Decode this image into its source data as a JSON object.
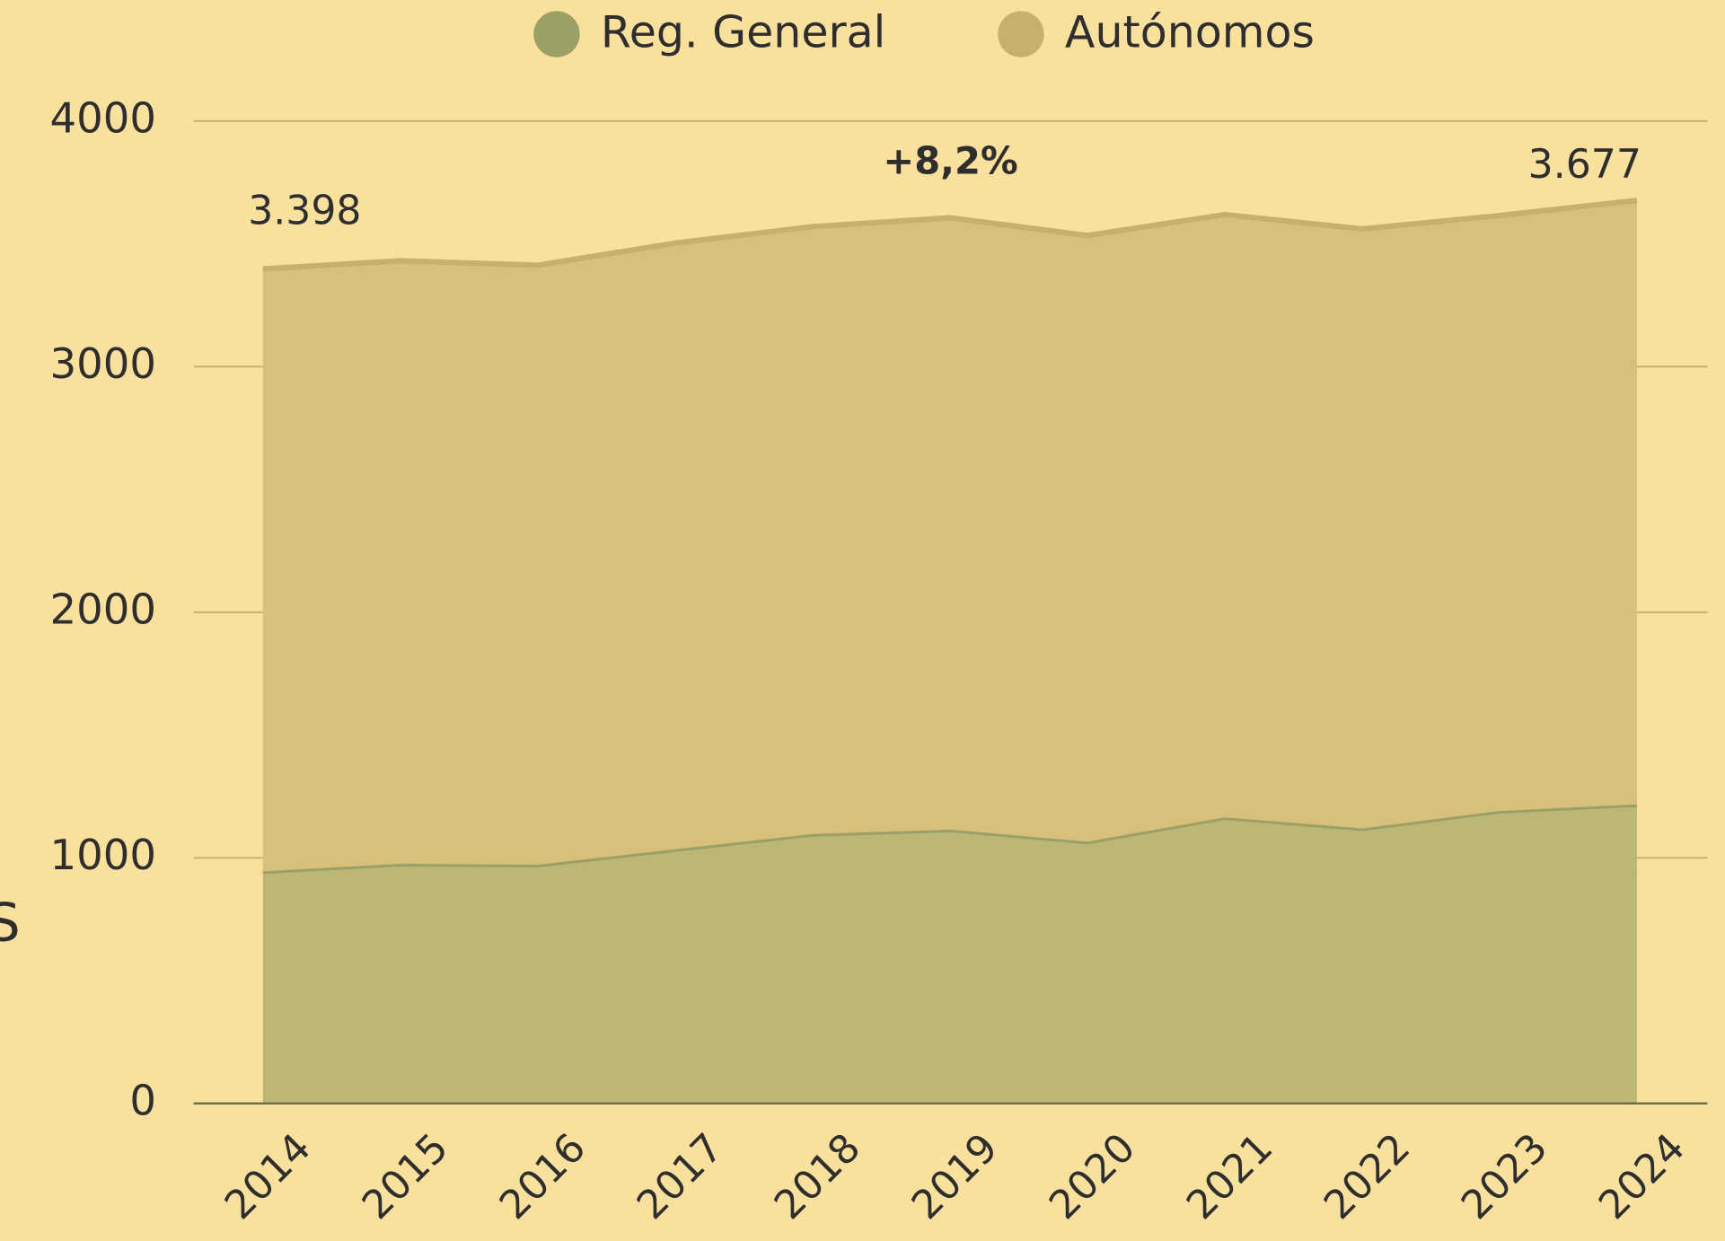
{
  "chart_data": {
    "type": "area",
    "stacked": true,
    "x": [
      "2014",
      "2015",
      "2016",
      "2017",
      "2018",
      "2019",
      "2020",
      "2021",
      "2022",
      "2023",
      "2024"
    ],
    "series": [
      {
        "name": "Reg. General",
        "color": "#9ba166",
        "fill": "#bdb776",
        "values": [
          945,
          976,
          972,
          1035,
          1097,
          1115,
          1066,
          1165,
          1120,
          1191,
          1218
        ]
      },
      {
        "name": "Autónomos",
        "color": "#c8b06b",
        "fill": "#d8bf7a",
        "values": [
          2453,
          2455,
          2441,
          2468,
          2473,
          2491,
          2468,
          2454,
          2441,
          2424,
          2459
        ]
      }
    ],
    "ylim": [
      0,
      4000
    ],
    "yticks": [
      0,
      1000,
      2000,
      3000,
      4000
    ],
    "grid": true,
    "y_label": "S",
    "annotations": [
      "3.398",
      "+8,2%",
      "3.677"
    ],
    "legend": "top"
  }
}
